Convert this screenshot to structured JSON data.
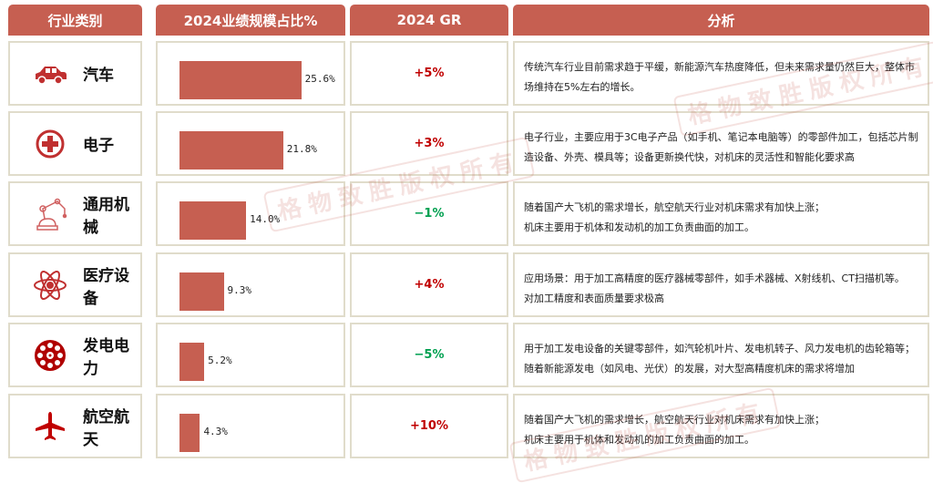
{
  "headers": [
    "行业类别",
    "2024业绩规模占比%",
    "2024 GR",
    "分析"
  ],
  "colors": {
    "accent": "#c65f51",
    "positive": "#c00000",
    "negative": "#00a050",
    "border": "#e0dccb"
  },
  "watermark": "格物致胜版权所有",
  "rows": [
    {
      "category": "汽车",
      "icon": "car-icon",
      "share": 25.6,
      "share_label": "25.6%",
      "growth": "+5%",
      "trend": "up",
      "analysis": [
        "传统汽车行业目前需求趋于平缓，新能源汽车热度降低，但未来需求量仍然巨大，整体市场维持在5%左右的增长。"
      ]
    },
    {
      "category": "电子",
      "icon": "medical-cross-icon",
      "share": 21.8,
      "share_label": "21.8%",
      "growth": "+3%",
      "trend": "up",
      "analysis": [
        "电子行业，主要应用于3C电子产品（如手机、笔记本电脑等）的零部件加工，包括芯片制造设备、外壳、模具等；设备更新换代快，对机床的灵活性和智能化要求高"
      ]
    },
    {
      "category": "通用机械",
      "icon": "robot-arm-icon",
      "share": 14.0,
      "share_label": "14.0%",
      "growth": "−1%",
      "trend": "down",
      "analysis": [
        "随着国产大飞机的需求增长，航空航天行业对机床需求有加快上涨；",
        "机床主要用于机体和发动机的加工负责曲面的加工。"
      ]
    },
    {
      "category": "医疗设备",
      "icon": "atom-icon",
      "share": 9.3,
      "share_label": "9.3%",
      "growth": "+4%",
      "trend": "up",
      "analysis": [
        "应用场景：用于加工高精度的医疗器械零部件，如手术器械、X射线机、CT扫描机等。",
        "对加工精度和表面质量要求极高"
      ]
    },
    {
      "category": "发电电力",
      "icon": "turbine-wheel-icon",
      "share": 5.2,
      "share_label": "5.2%",
      "growth": "−5%",
      "trend": "down",
      "analysis": [
        "用于加工发电设备的关键零部件，如汽轮机叶片、发电机转子、风力发电机的齿轮箱等；随着新能源发电（如风电、光伏）的发展，对大型高精度机床的需求将增加"
      ]
    },
    {
      "category": "航空航天",
      "icon": "airplane-icon",
      "share": 4.3,
      "share_label": "4.3%",
      "growth": "+10%",
      "trend": "up",
      "analysis": [
        "随着国产大飞机的需求增长，航空航天行业对机床需求有加快上涨；",
        "机床主要用于机体和发动机的加工负责曲面的加工。"
      ]
    }
  ]
}
